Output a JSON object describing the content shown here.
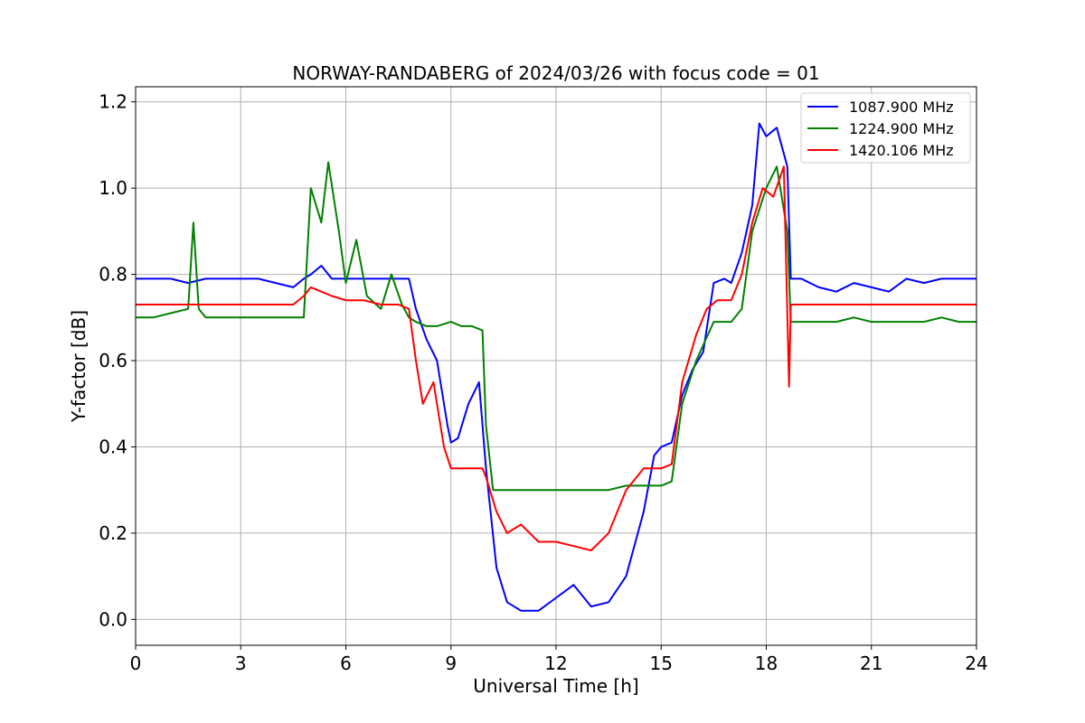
{
  "chart_data": {
    "type": "line",
    "title": "NORWAY-RANDABERG of 2024/03/26 with focus code = 01",
    "xlabel": "Universal Time [h]",
    "ylabel": "Y-factor [dB]",
    "xlim": [
      0,
      24
    ],
    "ylim": [
      -0.06,
      1.235
    ],
    "xticks": [
      0,
      3,
      6,
      9,
      12,
      15,
      18,
      21,
      24
    ],
    "yticks": [
      0.0,
      0.2,
      0.4,
      0.6,
      0.8,
      1.0,
      1.2
    ],
    "xtick_labels": [
      "0",
      "3",
      "6",
      "9",
      "12",
      "15",
      "18",
      "21",
      "24"
    ],
    "ytick_labels": [
      "0.0",
      "0.2",
      "0.4",
      "0.6",
      "0.8",
      "1.0",
      "1.2"
    ],
    "grid": true,
    "legend_position": "top-right",
    "series": [
      {
        "name": "1087.900 MHz",
        "color": "#0000ff",
        "x": [
          0,
          0.5,
          1,
          1.5,
          2,
          2.5,
          3,
          3.5,
          4,
          4.5,
          4.8,
          5,
          5.3,
          5.6,
          6,
          6.5,
          7,
          7.5,
          7.8,
          8,
          8.3,
          8.6,
          8.9,
          9,
          9.2,
          9.5,
          9.8,
          10,
          10.3,
          10.6,
          11,
          11.5,
          12,
          12.5,
          13,
          13.5,
          14,
          14.5,
          14.8,
          15,
          15.3,
          15.6,
          15.9,
          16.2,
          16.5,
          16.8,
          17,
          17.3,
          17.6,
          17.8,
          18,
          18.3,
          18.6,
          18.7,
          19,
          19.5,
          20,
          20.5,
          21,
          21.5,
          22,
          22.5,
          23,
          23.5,
          24
        ],
        "y": [
          0.79,
          0.79,
          0.79,
          0.78,
          0.79,
          0.79,
          0.79,
          0.79,
          0.78,
          0.77,
          0.79,
          0.8,
          0.82,
          0.79,
          0.79,
          0.79,
          0.79,
          0.79,
          0.79,
          0.72,
          0.65,
          0.6,
          0.45,
          0.41,
          0.42,
          0.5,
          0.55,
          0.35,
          0.12,
          0.04,
          0.02,
          0.02,
          0.05,
          0.08,
          0.03,
          0.04,
          0.1,
          0.25,
          0.38,
          0.4,
          0.41,
          0.52,
          0.58,
          0.62,
          0.78,
          0.79,
          0.78,
          0.85,
          0.96,
          1.15,
          1.12,
          1.14,
          1.05,
          0.79,
          0.79,
          0.77,
          0.76,
          0.78,
          0.77,
          0.76,
          0.79,
          0.78,
          0.79,
          0.79,
          0.79
        ]
      },
      {
        "name": "1224.900 MHz",
        "color": "#008000",
        "x": [
          0,
          0.5,
          1,
          1.5,
          1.65,
          1.8,
          2,
          2.5,
          3,
          3.5,
          4,
          4.5,
          4.8,
          5,
          5.3,
          5.5,
          5.8,
          6,
          6.3,
          6.6,
          7,
          7.3,
          7.6,
          7.8,
          8,
          8.3,
          8.6,
          9,
          9.3,
          9.6,
          9.9,
          10,
          10.2,
          10.5,
          11,
          11.5,
          12,
          12.5,
          13,
          13.5,
          14,
          14.5,
          15,
          15.3,
          15.6,
          16,
          16.5,
          17,
          17.3,
          17.6,
          18,
          18.3,
          18.6,
          18.7,
          19,
          19.5,
          20,
          20.5,
          21,
          21.5,
          22,
          22.5,
          23,
          23.5,
          24
        ],
        "y": [
          0.7,
          0.7,
          0.71,
          0.72,
          0.92,
          0.72,
          0.7,
          0.7,
          0.7,
          0.7,
          0.7,
          0.7,
          0.7,
          1.0,
          0.92,
          1.06,
          0.9,
          0.78,
          0.88,
          0.75,
          0.72,
          0.8,
          0.73,
          0.7,
          0.69,
          0.68,
          0.68,
          0.69,
          0.68,
          0.68,
          0.67,
          0.45,
          0.3,
          0.3,
          0.3,
          0.3,
          0.3,
          0.3,
          0.3,
          0.3,
          0.31,
          0.31,
          0.31,
          0.32,
          0.5,
          0.6,
          0.69,
          0.69,
          0.72,
          0.9,
          1.0,
          1.05,
          0.9,
          0.69,
          0.69,
          0.69,
          0.69,
          0.7,
          0.69,
          0.69,
          0.69,
          0.69,
          0.7,
          0.69,
          0.69
        ]
      },
      {
        "name": "1420.106 MHz",
        "color": "#ff0000",
        "x": [
          0,
          0.5,
          1,
          1.5,
          2,
          2.5,
          3,
          3.5,
          4,
          4.5,
          4.8,
          5,
          5.3,
          5.6,
          6,
          6.5,
          7,
          7.5,
          7.8,
          8,
          8.2,
          8.5,
          8.8,
          9,
          9.3,
          9.6,
          9.9,
          10,
          10.3,
          10.6,
          11,
          11.5,
          12,
          12.5,
          13,
          13.5,
          14,
          14.5,
          15,
          15.3,
          15.6,
          16,
          16.3,
          16.6,
          17,
          17.3,
          17.6,
          17.9,
          18.2,
          18.5,
          18.65,
          18.7,
          19,
          19.5,
          20,
          20.5,
          21,
          21.5,
          22,
          22.5,
          23,
          23.5,
          24
        ],
        "y": [
          0.73,
          0.73,
          0.73,
          0.73,
          0.73,
          0.73,
          0.73,
          0.73,
          0.73,
          0.73,
          0.75,
          0.77,
          0.76,
          0.75,
          0.74,
          0.74,
          0.73,
          0.73,
          0.72,
          0.6,
          0.5,
          0.55,
          0.4,
          0.35,
          0.35,
          0.35,
          0.35,
          0.33,
          0.25,
          0.2,
          0.22,
          0.18,
          0.18,
          0.17,
          0.16,
          0.2,
          0.3,
          0.35,
          0.35,
          0.36,
          0.55,
          0.66,
          0.72,
          0.74,
          0.74,
          0.8,
          0.92,
          1.0,
          0.98,
          1.05,
          0.54,
          0.73,
          0.73,
          0.73,
          0.73,
          0.73,
          0.73,
          0.73,
          0.73,
          0.73,
          0.73,
          0.73,
          0.73
        ]
      }
    ]
  }
}
